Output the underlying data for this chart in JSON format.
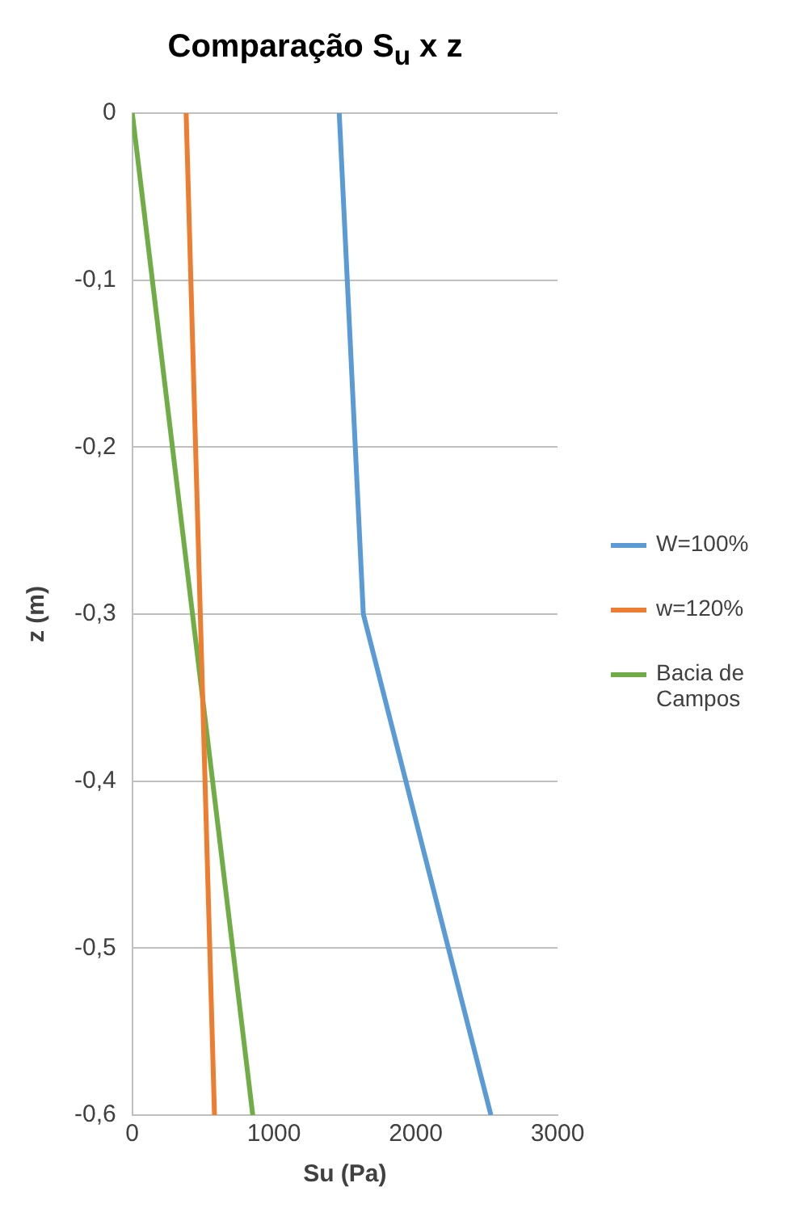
{
  "chart_data": {
    "type": "line",
    "title": "Comparação S$_{u}$ x z",
    "xlabel": "Su (Pa)",
    "ylabel": "z (m)",
    "xlim": [
      0,
      3000
    ],
    "xticks": [
      0,
      1000,
      2000,
      3000
    ],
    "ylim": [
      -0.6,
      0
    ],
    "yticks": [
      0,
      {
        "value": -0.1,
        "label": "-0,1"
      },
      {
        "value": -0.2,
        "label": "-0,2"
      },
      {
        "value": -0.3,
        "label": "-0,3"
      },
      {
        "value": -0.4,
        "label": "-0,4"
      },
      {
        "value": -0.5,
        "label": "-0,5"
      },
      {
        "value": -0.6,
        "label": "-0,6"
      }
    ],
    "grid": "y",
    "legend": "right",
    "marker": "none",
    "series": [
      {
        "name": "W=100%",
        "color": "#5b9bd5",
        "x": [
          1460,
          1630,
          2530
        ],
        "values": [
          0,
          -0.3,
          -0.6
        ]
      },
      {
        "name": "w=120%",
        "color": "#ed7d31",
        "x": [
          380,
          580
        ],
        "values": [
          0,
          -0.6
        ]
      },
      {
        "name": "Bacia de Campos",
        "color": "#70ad47",
        "x": [
          0,
          850
        ],
        "values": [
          0,
          -0.6
        ]
      }
    ]
  }
}
